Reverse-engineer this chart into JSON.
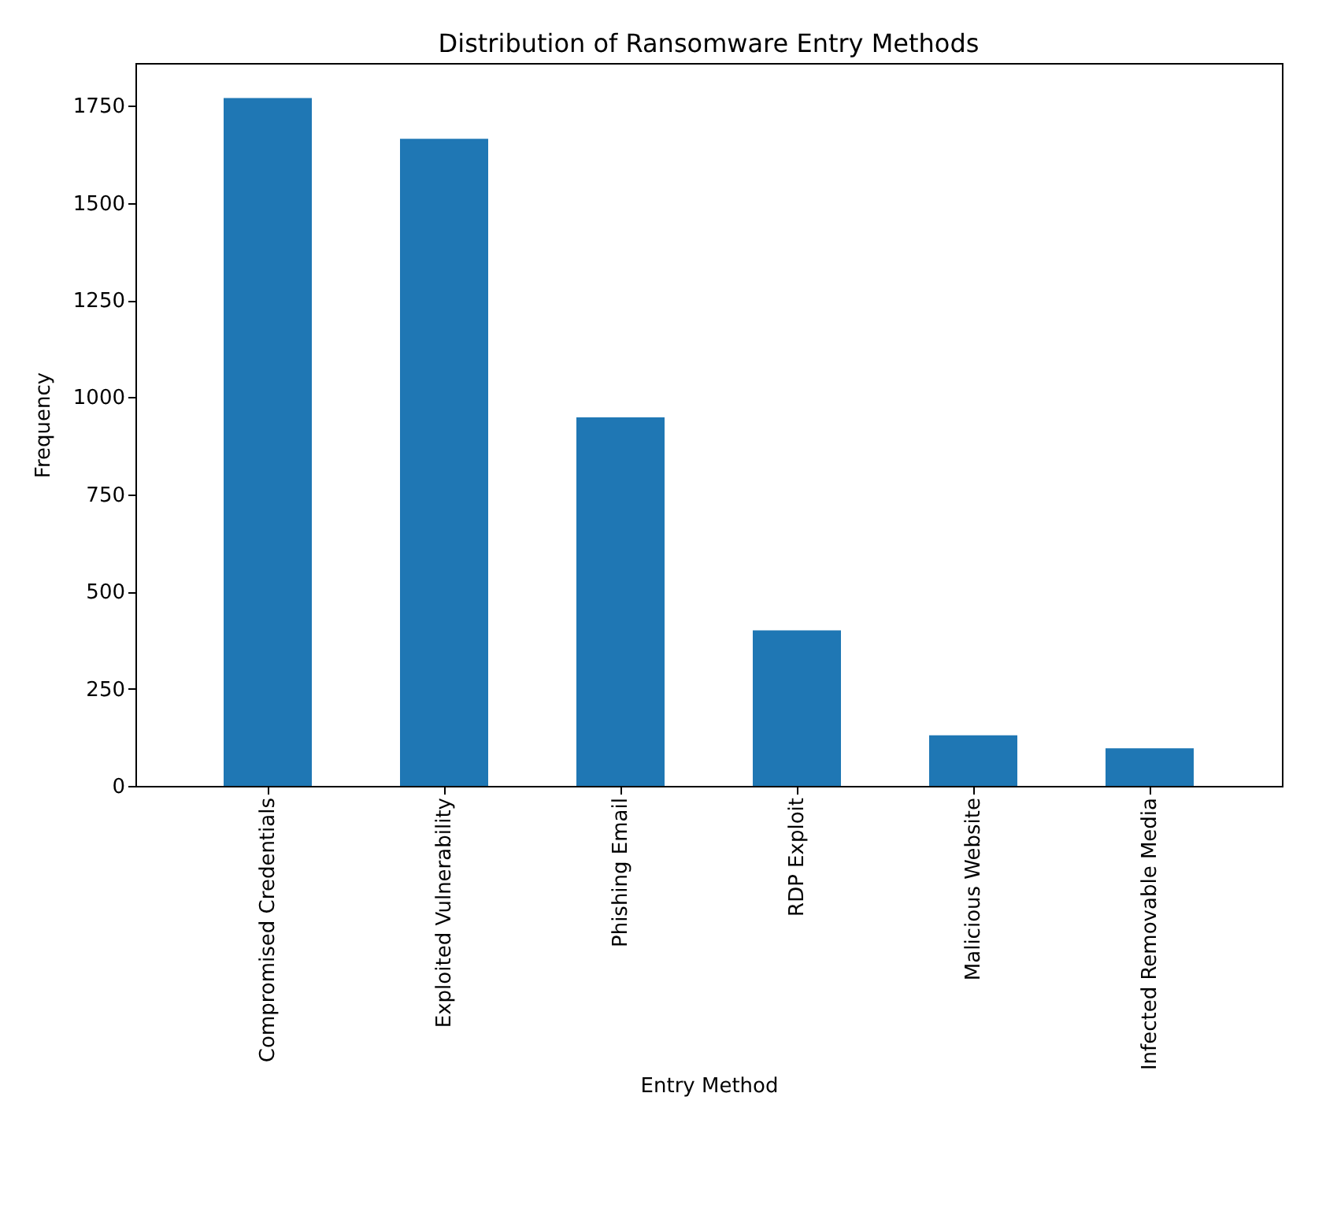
{
  "chart_data": {
    "type": "bar",
    "title": "Distribution of Ransomware Entry Methods",
    "xlabel": "Entry Method",
    "ylabel": "Frequency",
    "categories": [
      "Compromised Credentials",
      "Exploited Vulnerability",
      "Phishing Email",
      "RDP Exploit",
      "Malicious Website",
      "Infected Removable Media"
    ],
    "values": [
      1770,
      1665,
      948,
      400,
      130,
      97
    ],
    "color": "#1f77b4",
    "ylim": [
      0,
      1860
    ],
    "yticks": [
      0,
      250,
      500,
      750,
      1000,
      1250,
      1500,
      1750
    ],
    "grid": false
  }
}
